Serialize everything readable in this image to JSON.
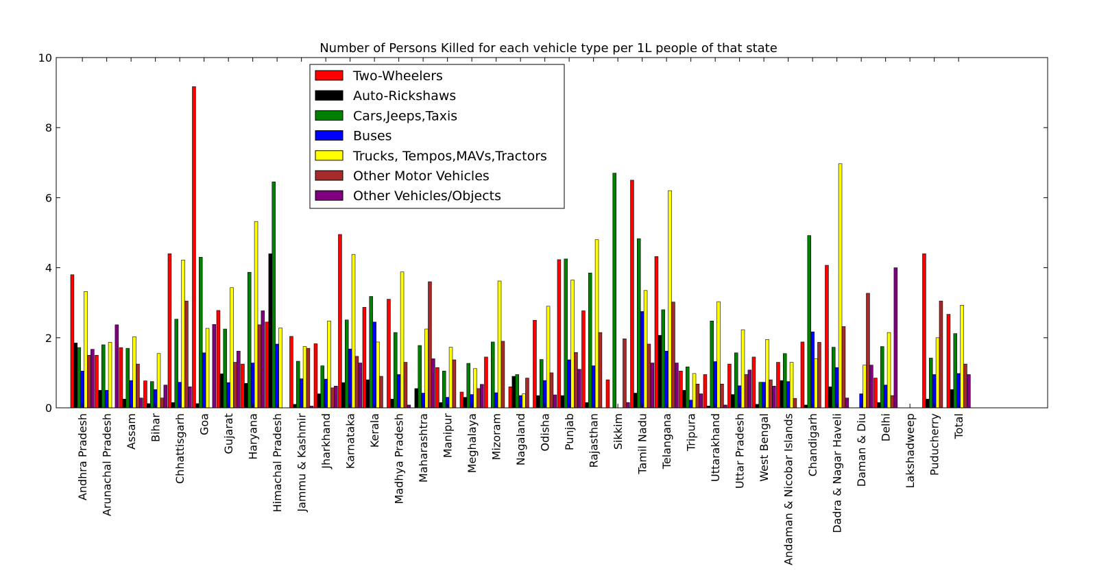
{
  "chart_data": {
    "type": "bar",
    "title": "Number of Persons Killed for each vehicle type per 1L people of that state",
    "xlabel": "",
    "ylabel": "",
    "ylim": [
      0,
      10
    ],
    "yticks": [
      0,
      2,
      4,
      6,
      8,
      10
    ],
    "grid": false,
    "legend_position": "top-left",
    "categories": [
      "Andhra Pradesh",
      "Arunachal Pradesh",
      "Assam",
      "Bihar",
      "Chhattisgarh",
      "Goa",
      "Gujarat",
      "Haryana",
      "Himachal Pradesh",
      "Jammu & Kashmir",
      "Jharkhand",
      "Karnataka",
      "Kerala",
      "Madhya Pradesh",
      "Maharashtra",
      "Manipur",
      "Meghalaya",
      "Mizoram",
      "Nagaland",
      "Odisha",
      "Punjab",
      "Rajasthan",
      "Sikkim",
      "Tamil Nadu",
      "Telangana",
      "Tripura",
      "Uttarakhand",
      "Uttar Pradesh",
      "West Bengal",
      "Andaman & Nicobar Islands",
      "Chandigarh",
      "Dadra & Nagar Haveli",
      "Daman & Diu",
      "Delhi",
      "Lakshadweep",
      "Puducherry",
      "Total"
    ],
    "series": [
      {
        "name": "Two-Wheelers",
        "color": "#ff0000",
        "values": [
          3.8,
          1.5,
          1.72,
          0.77,
          4.4,
          9.17,
          2.78,
          1.25,
          2.45,
          2.04,
          1.83,
          4.95,
          2.87,
          3.1,
          0,
          1.15,
          0.45,
          1.45,
          0.6,
          2.5,
          4.23,
          2.77,
          0.8,
          6.5,
          4.32,
          1.05,
          0.95,
          1.25,
          1.45,
          1.3,
          1.88,
          4.07,
          0,
          0.85,
          0,
          4.4,
          2.67
        ]
      },
      {
        "name": "Auto-Rickshaws",
        "color": "#000000",
        "values": [
          1.85,
          0.5,
          0.25,
          0.12,
          0.15,
          0.12,
          0.97,
          0.7,
          4.4,
          0.1,
          0.4,
          0.72,
          0.8,
          0.25,
          0.55,
          0.15,
          0.3,
          0,
          0.9,
          0.35,
          0.35,
          0.15,
          0,
          0.42,
          2.07,
          0.5,
          0.05,
          0.38,
          0.1,
          0.78,
          0.08,
          0.6,
          0,
          0.15,
          0,
          0.25,
          0.52
        ]
      },
      {
        "name": "Cars,Jeeps,Taxis",
        "color": "#008000",
        "values": [
          1.72,
          1.8,
          1.7,
          0.75,
          2.53,
          4.3,
          2.25,
          3.87,
          6.45,
          1.33,
          1.2,
          2.51,
          3.18,
          2.15,
          1.78,
          1.05,
          1.27,
          1.88,
          0.95,
          1.38,
          4.25,
          3.85,
          6.7,
          4.83,
          2.8,
          1.17,
          2.48,
          1.57,
          0.73,
          1.55,
          4.92,
          1.73,
          0,
          1.75,
          0,
          1.42,
          2.12
        ]
      },
      {
        "name": "Buses",
        "color": "#0000ff",
        "values": [
          1.05,
          0.5,
          0.78,
          0.52,
          0.73,
          1.57,
          0.72,
          1.28,
          1.82,
          0.83,
          0.82,
          1.68,
          2.45,
          0.95,
          0.42,
          0.3,
          0.38,
          0.43,
          0.35,
          0.78,
          1.37,
          1.2,
          0,
          2.75,
          1.62,
          0.22,
          1.32,
          0.63,
          0.73,
          0.75,
          2.17,
          1.15,
          0.4,
          0.65,
          0,
          0.95,
          0.98
        ]
      },
      {
        "name": "Trucks, Tempos,MAVs,Tractors",
        "color": "#ffff00",
        "values": [
          3.32,
          1.87,
          2.03,
          1.55,
          4.22,
          2.27,
          3.43,
          5.32,
          2.28,
          1.75,
          2.48,
          4.38,
          1.88,
          3.88,
          2.25,
          1.73,
          1.12,
          3.62,
          0.4,
          2.9,
          3.65,
          4.8,
          0,
          3.35,
          6.2,
          0.98,
          3.03,
          2.23,
          1.95,
          1.3,
          1.4,
          6.97,
          1.22,
          2.15,
          0,
          2.0,
          2.93
        ]
      },
      {
        "name": "Other Motor Vehicles",
        "color": "#a52a2a",
        "values": [
          1.5,
          0,
          1.25,
          0.28,
          3.05,
          0,
          1.3,
          2.37,
          0,
          1.7,
          0.57,
          1.47,
          0.9,
          1.3,
          3.6,
          1.37,
          0.55,
          1.9,
          0.85,
          1.0,
          1.58,
          2.15,
          1.97,
          1.82,
          3.02,
          0.68,
          0.68,
          0.95,
          0.8,
          0.27,
          1.87,
          2.32,
          3.27,
          0.35,
          0,
          3.05,
          1.25
        ]
      },
      {
        "name": "Other Vehicles/Objects",
        "color": "#800080",
        "values": [
          1.67,
          2.37,
          0.28,
          0.65,
          0.6,
          2.38,
          1.62,
          2.77,
          0,
          0.05,
          0.62,
          1.28,
          0,
          0.08,
          1.4,
          0,
          0.67,
          0,
          0,
          0.37,
          1.1,
          0,
          0.15,
          1.28,
          1.28,
          0.4,
          0.08,
          1.08,
          0.62,
          0,
          0,
          0.28,
          1.22,
          4.0,
          0,
          0,
          0.95
        ]
      }
    ]
  }
}
